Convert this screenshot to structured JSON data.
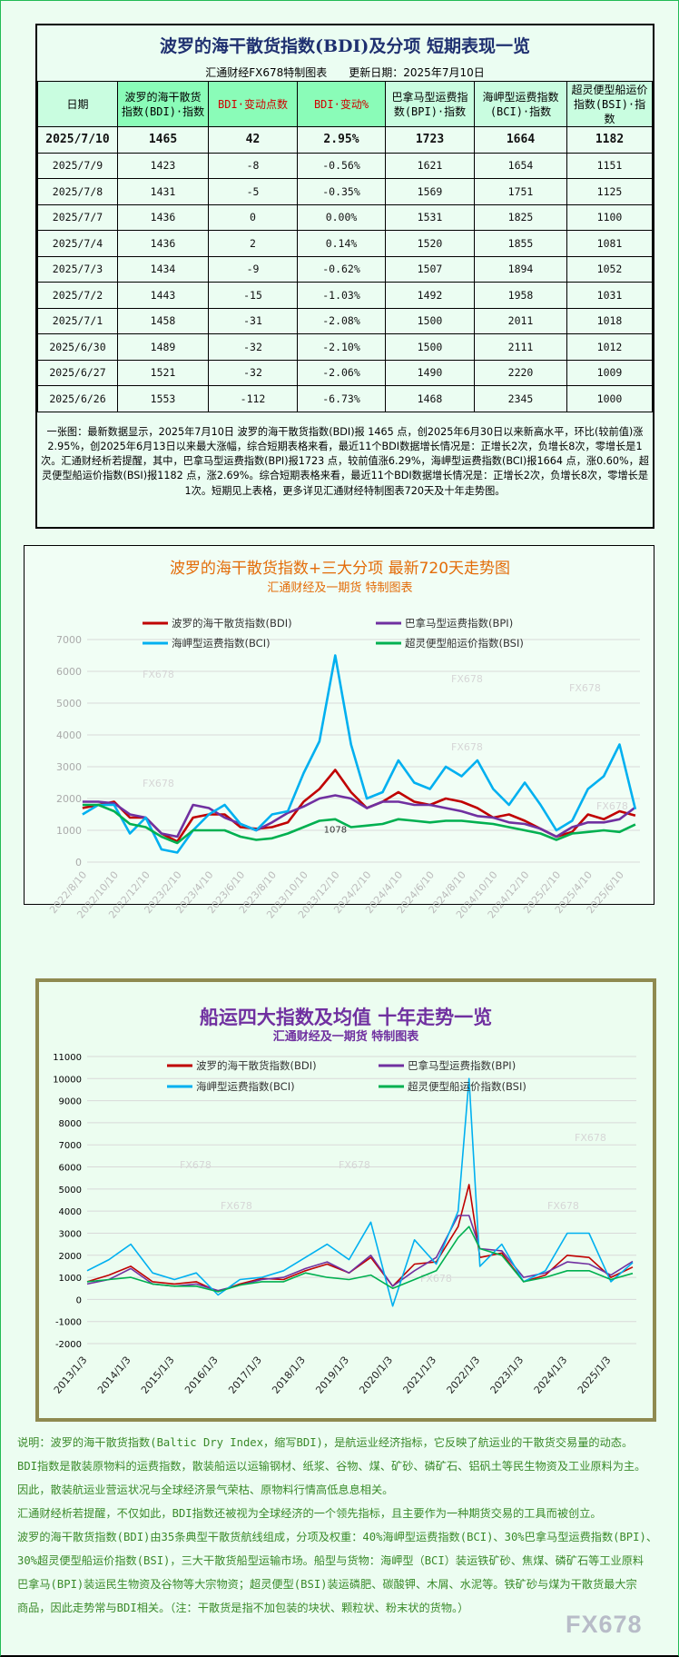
{
  "table": {
    "title": "波罗的海干散货指数(BDI)及分项 短期表现一览",
    "subtitle": "汇通财经FX678特制图表　　更新日期：2025年7月10日",
    "headers": [
      "日期",
      "波罗的海干散货指数(BDI)·指数",
      "BDI·变动点数",
      "BDI·变动%",
      "巴拿马型运费指数(BPI)·指数",
      "海岬型运费指数(BCI)·指数",
      "超灵便型船运价指数(BSI)·指数"
    ],
    "rows": [
      [
        "2025/7/10",
        "1465",
        "42",
        "2.95%",
        "1723",
        "1664",
        "1182"
      ],
      [
        "2025/7/9",
        "1423",
        "-8",
        "-0.56%",
        "1621",
        "1654",
        "1151"
      ],
      [
        "2025/7/8",
        "1431",
        "-5",
        "-0.35%",
        "1569",
        "1751",
        "1125"
      ],
      [
        "2025/7/7",
        "1436",
        "0",
        "0.00%",
        "1531",
        "1825",
        "1100"
      ],
      [
        "2025/7/4",
        "1436",
        "2",
        "0.14%",
        "1520",
        "1855",
        "1081"
      ],
      [
        "2025/7/3",
        "1434",
        "-9",
        "-0.62%",
        "1507",
        "1894",
        "1052"
      ],
      [
        "2025/7/2",
        "1443",
        "-15",
        "-1.03%",
        "1492",
        "1958",
        "1031"
      ],
      [
        "2025/7/1",
        "1458",
        "-31",
        "-2.08%",
        "1500",
        "2011",
        "1018"
      ],
      [
        "2025/6/30",
        "1489",
        "-32",
        "-2.10%",
        "1500",
        "2111",
        "1012"
      ],
      [
        "2025/6/27",
        "1521",
        "-32",
        "-2.06%",
        "1490",
        "2220",
        "1009"
      ],
      [
        "2025/6/26",
        "1553",
        "-112",
        "-6.73%",
        "1468",
        "2345",
        "1000"
      ]
    ],
    "summary": "一张图：最新数据显示，2025年7月10日 波罗的海干散货指数(BDI)报 1465 点，创2025年6月30日以来新高水平，环比(较前值)涨2.95%，创2025年6月13日以来最大涨幅，综合短期表格来看，最近11个BDI数据增长情况是：正增长2次，负增长8次，零增长是1次。汇通财经析若提醒，其中，巴拿马型运费指数(BPI)报1723 点，较前值涨6.29%，海岬型运费指数(BCI)报1664 点，涨0.60%，超灵便型船运价指数(BSI)报1182 点，涨2.69%。综合短期表格来看，最近11个BDI数据增长情况是：正增长2次，负增长8次，零增长是1次。短期见上表格，更多详见汇通财经特制图表720天及十年走势图。"
  },
  "chart_data": [
    {
      "type": "line",
      "title": "波罗的海干散货指数+三大分项  最新720天走势图",
      "subtitle": "汇通财经及一期货  特制图表",
      "ylim": [
        0,
        7000
      ],
      "yticks": [
        0,
        1000,
        2000,
        3000,
        4000,
        5000,
        6000,
        7000
      ],
      "grid": true,
      "legend": "top",
      "xticks": [
        "2022/8/10",
        "2022/10/10",
        "2022/12/10",
        "2023/2/10",
        "2023/4/10",
        "2023/6/10",
        "2023/8/10",
        "2023/10/10",
        "2023/12/10",
        "2024/2/10",
        "2024/4/10",
        "2024/6/10",
        "2024/8/10",
        "2024/10/10",
        "2024/12/10",
        "2025/2/10",
        "2025/4/10",
        "2025/6/10"
      ],
      "x": [
        "2022-08",
        "2022-09",
        "2022-10",
        "2022-11",
        "2022-12",
        "2023-01",
        "2023-02",
        "2023-03",
        "2023-04",
        "2023-05",
        "2023-06",
        "2023-07",
        "2023-08",
        "2023-09",
        "2023-10",
        "2023-11",
        "2023-12",
        "2024-01",
        "2024-02",
        "2024-03",
        "2024-04",
        "2024-05",
        "2024-06",
        "2024-07",
        "2024-08",
        "2024-09",
        "2024-10",
        "2024-11",
        "2024-12",
        "2025-01",
        "2025-02",
        "2025-03",
        "2025-04",
        "2025-05",
        "2025-06",
        "2025-07"
      ],
      "annotation": "1078",
      "watermark": "FX678",
      "series": [
        {
          "name": "波罗的海干散货指数(BDI)",
          "color": "#c00000",
          "values": [
            1700,
            1800,
            1900,
            1400,
            1400,
            900,
            650,
            1400,
            1500,
            1500,
            1100,
            1050,
            1100,
            1250,
            1900,
            2300,
            2900,
            2200,
            1700,
            1900,
            2200,
            1900,
            1800,
            2000,
            1900,
            1700,
            1400,
            1500,
            1300,
            1050,
            800,
            950,
            1500,
            1350,
            1600,
            1465
          ]
        },
        {
          "name": "巴拿马型运费指数(BPI)",
          "color": "#7030a0",
          "values": [
            1900,
            1900,
            1850,
            1500,
            1400,
            900,
            800,
            1800,
            1700,
            1400,
            1200,
            1000,
            1250,
            1550,
            1750,
            2000,
            2100,
            2000,
            1700,
            1900,
            1900,
            1800,
            1800,
            1700,
            1600,
            1450,
            1400,
            1250,
            1200,
            1050,
            800,
            1100,
            1250,
            1250,
            1350,
            1723
          ]
        },
        {
          "name": "海岬型运费指数(BCI)",
          "color": "#00b0f0",
          "values": [
            1500,
            1800,
            1800,
            900,
            1400,
            400,
            300,
            1000,
            1500,
            1800,
            1200,
            1000,
            1500,
            1600,
            2800,
            3800,
            6500,
            3700,
            2000,
            2200,
            3200,
            2500,
            2300,
            3000,
            2700,
            3200,
            2300,
            1800,
            2500,
            1800,
            1000,
            1300,
            2300,
            2700,
            3700,
            1664
          ]
        },
        {
          "name": "超灵便型船运价指数(BSI)",
          "color": "#00b050",
          "values": [
            1800,
            1800,
            1600,
            1200,
            1100,
            800,
            600,
            1000,
            1000,
            1000,
            800,
            700,
            750,
            900,
            1100,
            1300,
            1350,
            1100,
            1150,
            1200,
            1350,
            1300,
            1250,
            1300,
            1300,
            1250,
            1200,
            1100,
            1000,
            900,
            700,
            900,
            950,
            1000,
            950,
            1182
          ]
        }
      ]
    },
    {
      "type": "line",
      "title": "船运四大指数及均值 十年走势一览",
      "subtitle": "汇通财经及一期货 特制图表",
      "ylim": [
        -2000,
        11000
      ],
      "yticks": [
        -2000,
        -1000,
        0,
        1000,
        2000,
        3000,
        4000,
        5000,
        6000,
        7000,
        8000,
        9000,
        10000,
        11000
      ],
      "grid": true,
      "legend": "top",
      "xticks": [
        "2013/1/3",
        "2014/1/3",
        "2015/1/3",
        "2016/1/3",
        "2017/1/3",
        "2018/1/3",
        "2019/1/3",
        "2020/1/3",
        "2021/1/3",
        "2022/1/3",
        "2023/1/3",
        "2024/1/3",
        "2025/1/3"
      ],
      "x": [
        "2013-01",
        "2013-07",
        "2014-01",
        "2014-07",
        "2015-01",
        "2015-07",
        "2016-01",
        "2016-07",
        "2017-01",
        "2017-07",
        "2018-01",
        "2018-07",
        "2019-01",
        "2019-07",
        "2020-01",
        "2020-07",
        "2021-01",
        "2021-07",
        "2021-10",
        "2022-01",
        "2022-07",
        "2023-01",
        "2023-07",
        "2024-01",
        "2024-07",
        "2025-01",
        "2025-07"
      ],
      "watermark": "FX678",
      "series": [
        {
          "name": "波罗的海干散货指数(BDI)",
          "color": "#c00000",
          "values": [
            800,
            1100,
            1500,
            800,
            700,
            800,
            350,
            700,
            950,
            900,
            1300,
            1600,
            1200,
            1900,
            600,
            1600,
            1700,
            3300,
            5200,
            1900,
            2100,
            800,
            1100,
            2000,
            1900,
            1000,
            1465
          ]
        },
        {
          "name": "巴拿马型运费指数(BPI)",
          "color": "#7030a0",
          "values": [
            700,
            900,
            1400,
            700,
            600,
            700,
            400,
            650,
            900,
            1000,
            1400,
            1700,
            1200,
            2000,
            600,
            1300,
            1900,
            3800,
            3800,
            2300,
            2200,
            1000,
            1200,
            1700,
            1600,
            1100,
            1723
          ]
        },
        {
          "name": "海岬型运费指数(BCI)",
          "color": "#00b0f0",
          "values": [
            1300,
            1800,
            2500,
            1200,
            900,
            1200,
            200,
            900,
            1000,
            1300,
            1900,
            2500,
            1800,
            3500,
            -300,
            2700,
            1600,
            4000,
            10000,
            1500,
            2500,
            800,
            1300,
            3000,
            3000,
            800,
            1664
          ]
        },
        {
          "name": "超灵便型船运价指数(BSI)",
          "color": "#00b050",
          "values": [
            800,
            900,
            1000,
            700,
            600,
            600,
            350,
            650,
            800,
            800,
            1200,
            1000,
            900,
            1100,
            500,
            900,
            1300,
            2800,
            3300,
            2300,
            2000,
            800,
            1000,
            1300,
            1300,
            900,
            1182
          ]
        }
      ]
    }
  ],
  "description": [
    "说明：波罗的海干散货指数(Baltic Dry Index，缩写BDI)，是航运业经济指标，它反映了航运业的干散货交易量的动态。",
    "BDI指数是散装原物料的运费指数，散装船运以运输钢材、纸浆、谷物、煤、矿砂、磷矿石、铝矾土等民生物资及工业原料为主。",
    "因此，散装航运业营运状况与全球经济景气荣枯、原物料行情高低息息相关。",
    "汇通财经析若提醒，不仅如此，BDI指数还被视为全球经济的一个领先指标，且主要作为一种期货交易的工具而被创立。",
    "波罗的海干散货指数(BDI)由35条典型干散货航线组成，分项及权重：40%海岬型运费指数(BCI)、30%巴拿马型运费指数(BPI)、",
    "30%超灵便型船运价指数(BSI)，三大干散货船型运输市场。船型与货物：海岬型（BCI）装运铁矿砂、焦煤、磷矿石等工业原料",
    "巴拿马(BPI)装运民生物资及谷物等大宗物资；超灵便型(BSI)装运磷肥、碳酸钾、木屑、水泥等。铁矿砂与煤为干散货最大宗",
    "商品，因此走势常与BDI相关。（注：干散货是指不加包装的块状、颗粒状、粉末状的货物。）"
  ],
  "logo": "FX678"
}
